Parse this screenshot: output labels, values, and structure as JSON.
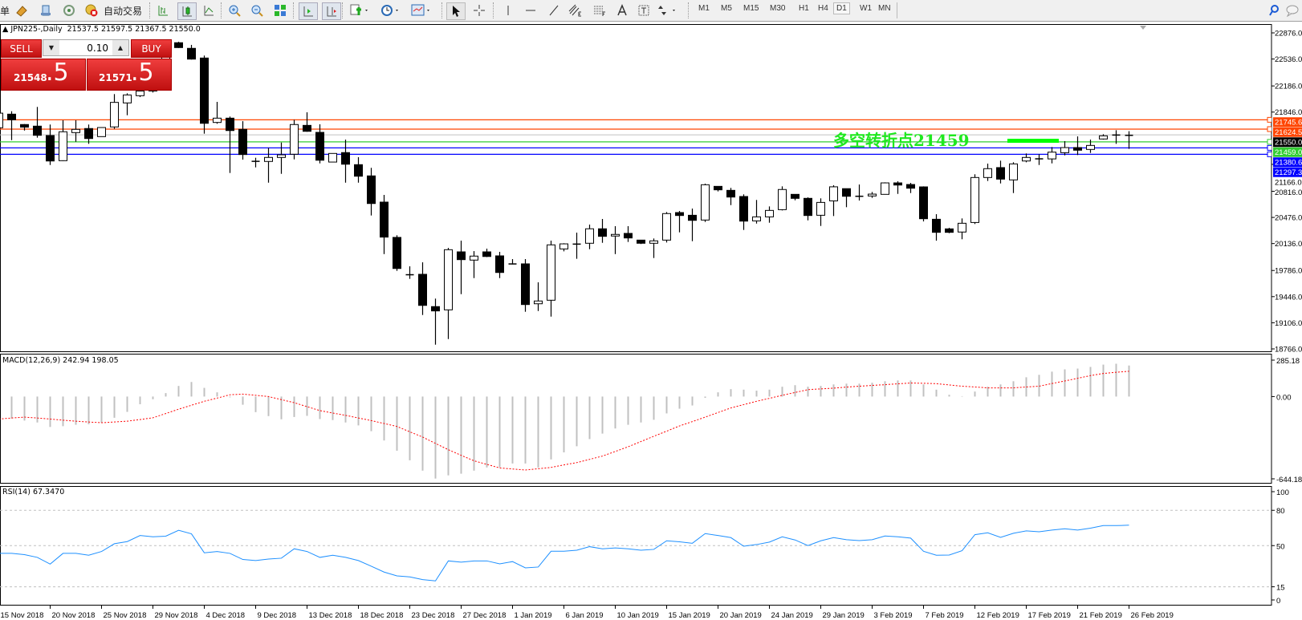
{
  "toolbar": {
    "menu_fragment": "单",
    "autotrade_label": "自动交易",
    "icons": [
      "orders-icon",
      "market-watch-icon",
      "navigator-icon",
      "signals-icon",
      "autotrade-icon",
      "bar-chart-icon",
      "candlestick-icon",
      "line-chart-icon",
      "zoom-in-icon",
      "zoom-out-icon",
      "tile-windows-icon",
      "autoscroll-icon",
      "chart-shift-icon",
      "indicators-icon",
      "periods-icon",
      "templates-icon",
      "cursor-icon",
      "crosshair-icon",
      "vertical-line-icon",
      "horizontal-line-icon",
      "trendline-icon",
      "equidistant-channel-icon",
      "fibonacci-icon",
      "text-icon",
      "text-label-icon",
      "arrows-icon",
      "search-icon",
      "chat-icon"
    ],
    "timeframes": [
      "M1",
      "M5",
      "M15",
      "M30",
      "H1",
      "H4",
      "D1",
      "W1",
      "MN"
    ],
    "active_timeframe": "D1"
  },
  "chart": {
    "symbol_header": "JPN225-,Daily",
    "ohlc_header": "21537.5 21597.5 21367.5 21550.0",
    "trade_panel": {
      "sell_label": "SELL",
      "buy_label": "BUY",
      "lot": "0.10",
      "sell_price_main": "21548",
      "sell_price_frac": ".5",
      "buy_price_main": "21571",
      "buy_price_frac": ".5"
    },
    "annotation_text": "多空转折点21459",
    "annotation_color": "#1fe81f",
    "price_axis_labels": [
      "22876.0",
      "22536.0",
      "22186.0",
      "21846.0",
      "21166.0",
      "20816.0",
      "20476.0",
      "20136.0",
      "19786.0",
      "19446.0",
      "19106.0",
      "18766.0"
    ],
    "levels": [
      {
        "price": 21745.6,
        "label": "21745.6",
        "color": "#FF4500"
      },
      {
        "price": 21624.5,
        "label": "21624.5",
        "color": "#FF4500"
      },
      {
        "price": 21459.0,
        "label": "21459.0",
        "color": "#32CD32"
      },
      {
        "price": 21380.6,
        "label": "21380.6",
        "color": "#0000FF"
      },
      {
        "price": 21297.3,
        "label": "21297.3",
        "color": "#0000FF"
      }
    ],
    "current_price": {
      "price": 21550.0,
      "label": "21550.0",
      "line_color": "#C0C0C0"
    },
    "date_labels": [
      "15 Nov 2018",
      "20 Nov 2018",
      "25 Nov 2018",
      "29 Nov 2018",
      "4 Dec 2018",
      "9 Dec 2018",
      "13 Dec 2018",
      "18 Dec 2018",
      "23 Dec 2018",
      "27 Dec 2018",
      "1 Jan 2019",
      "6 Jan 2019",
      "10 Jan 2019",
      "15 Jan 2019",
      "20 Jan 2019",
      "24 Jan 2019",
      "29 Jan 2019",
      "3 Feb 2019",
      "7 Feb 2019",
      "12 Feb 2019",
      "17 Feb 2019",
      "21 Feb 2019",
      "26 Feb 2019"
    ]
  },
  "chart_data": [
    {
      "type": "candlestick",
      "ylim": [
        18766,
        22876
      ],
      "ohlc": [
        [
          21642,
          21850,
          21635,
          21832
        ],
        [
          21819,
          21857,
          21481,
          21746
        ],
        [
          21684,
          21690,
          21606,
          21650
        ],
        [
          21663,
          21913,
          21513,
          21544
        ],
        [
          21541,
          21684,
          21158,
          21210
        ],
        [
          21214,
          21739,
          21210,
          21590
        ],
        [
          21579,
          21739,
          21460,
          21621
        ],
        [
          21632,
          21684,
          21433,
          21502
        ],
        [
          21527,
          21650,
          21527,
          21645
        ],
        [
          21653,
          22080,
          21628,
          21972
        ],
        [
          21965,
          22090,
          21805,
          22069
        ],
        [
          22059,
          22150,
          22041,
          22120
        ],
        [
          22120,
          22350,
          22100,
          22300
        ],
        [
          22300,
          22650,
          22280,
          22600
        ],
        [
          22748,
          22760,
          22680,
          22685
        ],
        [
          22675,
          22720,
          22529,
          22535
        ],
        [
          22549,
          22581,
          21565,
          21700
        ],
        [
          21711,
          21979,
          21694,
          21767
        ],
        [
          21767,
          21788,
          21054,
          21606
        ],
        [
          21621,
          21728,
          21228,
          21294
        ],
        [
          21203,
          21252,
          21127,
          21208
        ],
        [
          21204,
          21381,
          20928,
          21256
        ],
        [
          21256,
          21450,
          21043,
          21290
        ],
        [
          21298,
          21746,
          21231,
          21684
        ],
        [
          21673,
          21843,
          21590,
          21596
        ],
        [
          21582,
          21687,
          21179,
          21220
        ],
        [
          21196,
          21308,
          21196,
          21308
        ],
        [
          21319,
          21488,
          20928,
          21168
        ],
        [
          21162,
          21259,
          20928,
          21012
        ],
        [
          21016,
          21121,
          20501,
          20657
        ],
        [
          20675,
          20769,
          19999,
          20220
        ],
        [
          20216,
          20244,
          19781,
          19812
        ],
        [
          19733,
          19840,
          19677,
          19728
        ],
        [
          19736,
          19892,
          19207,
          19332
        ],
        [
          19316,
          19420,
          18821,
          19260
        ],
        [
          19274,
          20080,
          18894,
          20056
        ],
        [
          20028,
          20174,
          19478,
          19927
        ],
        [
          19921,
          20038,
          19687,
          19973
        ],
        [
          20028,
          20070,
          19960,
          19968
        ],
        [
          19976,
          20028,
          19687,
          19760
        ],
        [
          19872,
          19934,
          19865,
          19870
        ],
        [
          19872,
          19934,
          19249,
          19343
        ],
        [
          19353,
          19632,
          19259,
          19389
        ],
        [
          19399,
          20174,
          19186,
          20119
        ],
        [
          20066,
          20140,
          20035,
          20132
        ],
        [
          20130,
          20278,
          19938,
          20128
        ],
        [
          20140,
          20383,
          20063,
          20328
        ],
        [
          20328,
          20456,
          20146,
          20230
        ],
        [
          20234,
          20362,
          19999,
          20255
        ],
        [
          20268,
          20362,
          20157,
          20209
        ],
        [
          20181,
          20181,
          20130,
          20140
        ],
        [
          20140,
          20202,
          19948,
          20171
        ],
        [
          20181,
          20546,
          20150,
          20526
        ],
        [
          20539,
          20560,
          20282,
          20501
        ],
        [
          20504,
          20591,
          20167,
          20438
        ],
        [
          20442,
          20915,
          20417,
          20901
        ],
        [
          20880,
          20880,
          20814,
          20835
        ],
        [
          20828,
          20860,
          20636,
          20741
        ],
        [
          20748,
          20776,
          20313,
          20428
        ],
        [
          20431,
          20703,
          20396,
          20483
        ],
        [
          20483,
          20619,
          20407,
          20567
        ],
        [
          20577,
          20880,
          20567,
          20839
        ],
        [
          20776,
          20776,
          20699,
          20724
        ],
        [
          20724,
          20737,
          20438,
          20501
        ],
        [
          20504,
          20724,
          20365,
          20671
        ],
        [
          20691,
          20895,
          20494,
          20874
        ],
        [
          20850,
          20850,
          20609,
          20751
        ],
        [
          20752,
          20904,
          20696,
          20750
        ],
        [
          20755,
          20807,
          20730,
          20779
        ],
        [
          20776,
          20932,
          20776,
          20925
        ],
        [
          20925,
          20946,
          20782,
          20897
        ],
        [
          20904,
          20925,
          20793,
          20856
        ],
        [
          20873,
          20880,
          20424,
          20459
        ],
        [
          20452,
          20518,
          20174,
          20282
        ],
        [
          20327,
          20341,
          20271,
          20282
        ],
        [
          20286,
          20463,
          20192,
          20400
        ],
        [
          20410,
          21037,
          20390,
          20995
        ],
        [
          20995,
          21176,
          20950,
          21110
        ],
        [
          21124,
          21214,
          20918,
          20974
        ],
        [
          20964,
          21193,
          20793,
          21172
        ],
        [
          21210,
          21308,
          21193,
          21256
        ],
        [
          21239,
          21297,
          21158,
          21237
        ],
        [
          21237,
          21391,
          21179,
          21325
        ],
        [
          21318,
          21468,
          21283,
          21384
        ],
        [
          21384,
          21530,
          21287,
          21350
        ],
        [
          21360,
          21488,
          21315,
          21412
        ],
        [
          21496,
          21558,
          21488,
          21537
        ],
        [
          21549,
          21610,
          21433,
          21546
        ],
        [
          21537.5,
          21597.5,
          21367.5,
          21550
        ]
      ]
    },
    {
      "type": "bar+line",
      "title": "MACD(12,26,9) 242.94 198.05",
      "ylim": [
        -644.18,
        285.18
      ],
      "axis_labels": [
        "285.18",
        "0.00",
        "-644.18"
      ],
      "histogram_color": "#C0C0C0",
      "signal_color": "#FF0000",
      "histogram": [
        null,
        -172,
        -188,
        -203,
        -238,
        -232,
        -221,
        -217,
        -205,
        -166,
        -120,
        -60,
        -21,
        27,
        83,
        114,
        68,
        33,
        -6,
        -64,
        -122,
        -153,
        -178,
        -160,
        -151,
        -176,
        -184,
        -203,
        -226,
        -271,
        -344,
        -424,
        -499,
        -580,
        -642,
        -617,
        -604,
        -580,
        -555,
        -555,
        -524,
        -524,
        -555,
        -492,
        -437,
        -389,
        -333,
        -290,
        -250,
        -221,
        -203,
        -182,
        -132,
        -95,
        -70,
        -10,
        33,
        58,
        54,
        46,
        54,
        77,
        89,
        77,
        83,
        95,
        101,
        101,
        108,
        120,
        126,
        126,
        95,
        54,
        14,
        3,
        39,
        77,
        95,
        120,
        151,
        170,
        195,
        213,
        219,
        232,
        250,
        257,
        242.94
      ],
      "signal": [
        -176,
        -168,
        -161,
        -168,
        -176,
        -185,
        -193,
        -199,
        -205,
        -199,
        -193,
        -180,
        -166,
        -133,
        -99,
        -68,
        -37,
        -12,
        14,
        19,
        10,
        0,
        -24,
        -48,
        -79,
        -110,
        -129,
        -147,
        -168,
        -188,
        -211,
        -234,
        -276,
        -317,
        -367,
        -416,
        -460,
        -503,
        -531,
        -559,
        -567,
        -575,
        -565,
        -555,
        -535,
        -517,
        -492,
        -466,
        -430,
        -393,
        -352,
        -311,
        -271,
        -230,
        -196,
        -161,
        -125,
        -89,
        -63,
        -37,
        -14,
        10,
        32,
        54,
        60,
        66,
        74,
        81,
        87,
        93,
        100,
        106,
        104,
        101,
        91,
        81,
        75,
        68,
        68,
        68,
        75,
        81,
        102,
        122,
        143,
        164,
        181,
        190,
        198.05
      ]
    },
    {
      "type": "line",
      "title": "RSI(14) 67.3470",
      "ylim": [
        0,
        100
      ],
      "levels": [
        80,
        50,
        15
      ],
      "axis_labels": [
        "100",
        "80",
        "50",
        "15",
        "0"
      ],
      "line_color": "#1E90FF",
      "values": [
        43.4,
        43.4,
        42.3,
        40.0,
        34.3,
        43.4,
        43.4,
        41.8,
        45.0,
        51.6,
        53.4,
        58.6,
        57.5,
        58.0,
        63.0,
        60.0,
        43.9,
        45.0,
        43.4,
        38.2,
        37.3,
        38.6,
        39.3,
        47.3,
        45.0,
        40.0,
        41.8,
        40.0,
        37.3,
        32.5,
        27.5,
        24.3,
        23.4,
        21.1,
        20.0,
        37.0,
        35.9,
        37.0,
        37.0,
        34.5,
        36.4,
        31.1,
        31.8,
        45.2,
        45.2,
        46.1,
        49.1,
        47.3,
        48.0,
        47.3,
        46.1,
        46.8,
        54.1,
        53.2,
        52.0,
        60.2,
        58.6,
        56.8,
        49.5,
        50.9,
        53.0,
        57.5,
        54.8,
        50.0,
        54.1,
        56.8,
        55.0,
        54.3,
        55.0,
        58.2,
        57.5,
        56.4,
        45.2,
        41.8,
        42.0,
        45.7,
        59.3,
        60.9,
        57.0,
        60.5,
        62.5,
        61.8,
        63.2,
        64.3,
        63.2,
        64.8,
        67.0,
        67.0,
        67.347
      ]
    }
  ]
}
